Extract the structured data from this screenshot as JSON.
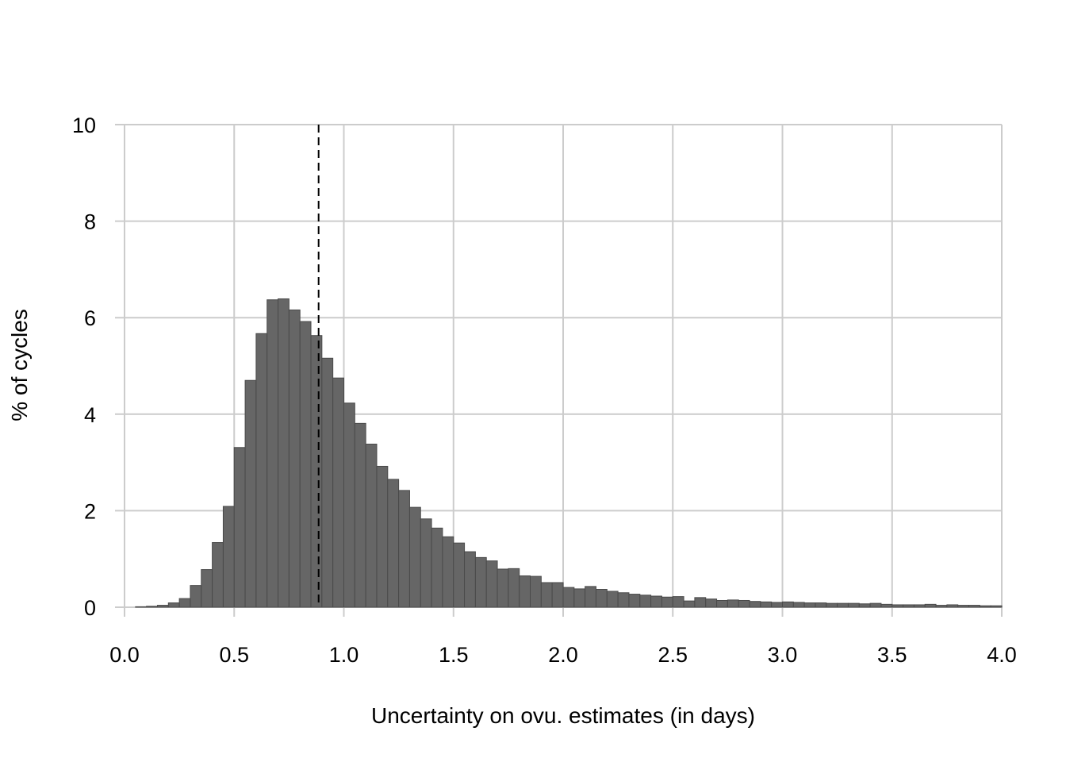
{
  "chart_data": {
    "type": "bar",
    "title": "",
    "xlabel": "Uncertainty on ovu. estimates (in days)",
    "ylabel": "% of cycles",
    "xlim": [
      0,
      4
    ],
    "ylim": [
      0,
      10
    ],
    "xticks": [
      "0.0",
      "0.5",
      "1.0",
      "1.5",
      "2.0",
      "2.5",
      "3.0",
      "3.5",
      "4.0"
    ],
    "yticks": [
      "0",
      "2",
      "4",
      "6",
      "8",
      "10"
    ],
    "grid": true,
    "bin_width": 0.05,
    "bin_start": 0.0,
    "reference_line_x": 0.885,
    "values": [
      0.0,
      0.01,
      0.02,
      0.04,
      0.09,
      0.18,
      0.45,
      0.78,
      1.34,
      2.09,
      3.31,
      4.7,
      5.67,
      6.37,
      6.39,
      6.16,
      5.92,
      5.63,
      5.16,
      4.75,
      4.23,
      3.81,
      3.38,
      2.92,
      2.65,
      2.42,
      2.07,
      1.83,
      1.64,
      1.46,
      1.33,
      1.15,
      1.03,
      0.96,
      0.79,
      0.8,
      0.65,
      0.64,
      0.51,
      0.51,
      0.41,
      0.38,
      0.43,
      0.37,
      0.33,
      0.3,
      0.27,
      0.25,
      0.23,
      0.21,
      0.22,
      0.13,
      0.2,
      0.17,
      0.14,
      0.15,
      0.14,
      0.12,
      0.11,
      0.1,
      0.11,
      0.1,
      0.09,
      0.09,
      0.08,
      0.08,
      0.08,
      0.07,
      0.08,
      0.06,
      0.05,
      0.05,
      0.05,
      0.06,
      0.04,
      0.05,
      0.04,
      0.04,
      0.03,
      0.03
    ]
  }
}
